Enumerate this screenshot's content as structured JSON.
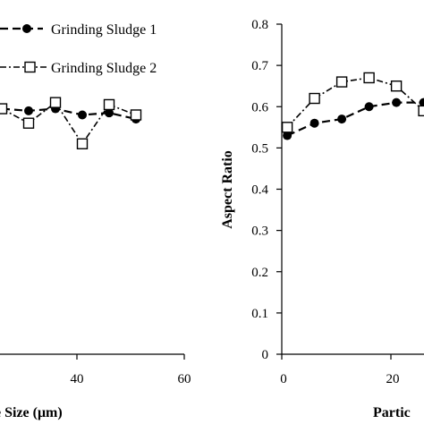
{
  "chart_data": [
    {
      "type": "line",
      "xlabel": "Particle Size (μm)",
      "xlabel_visible": "e Size (μm)",
      "ylabel": "",
      "xticks": [
        40,
        60
      ],
      "xlim": [
        0,
        60
      ],
      "ylim": [
        0,
        0.8
      ],
      "grid": false,
      "legend": {
        "placement": "top",
        "entries": [
          "Grinding Sludge 1",
          "Grinding Sludge 2"
        ]
      },
      "series": [
        {
          "name": "Grinding Sludge 1",
          "marker": "filled-circle",
          "line": "dashed",
          "x": [
            26,
            31,
            36,
            41,
            46,
            51
          ],
          "y": [
            0.595,
            0.59,
            0.595,
            0.58,
            0.585,
            0.57
          ]
        },
        {
          "name": "Grinding Sludge 2",
          "marker": "open-square",
          "line": "dash-dot",
          "x": [
            26,
            31,
            36,
            41,
            46,
            51
          ],
          "y": [
            0.595,
            0.56,
            0.61,
            0.51,
            0.605,
            0.58
          ]
        }
      ]
    },
    {
      "type": "line",
      "xlabel": "Particle Size (μm)",
      "xlabel_visible": "Partic",
      "ylabel": "Aspect Ratio",
      "yticks": [
        "0",
        "0.1",
        "0.2",
        "0.3",
        "0.4",
        "0.5",
        "0.6",
        "0.7",
        "0.8"
      ],
      "xticks": [
        "0",
        "20"
      ],
      "xlim": [
        0,
        40
      ],
      "ylim": [
        0,
        0.8
      ],
      "grid": false,
      "series": [
        {
          "name": "Grinding Sludge 1",
          "marker": "filled-circle",
          "line": "dashed",
          "x": [
            1,
            6,
            11,
            16,
            21,
            26
          ],
          "y": [
            0.53,
            0.56,
            0.57,
            0.6,
            0.61,
            0.61
          ]
        },
        {
          "name": "Grinding Sludge 2",
          "marker": "open-square",
          "line": "dash-dot",
          "x": [
            1,
            6,
            11,
            16,
            21,
            26
          ],
          "y": [
            0.55,
            0.62,
            0.66,
            0.67,
            0.65,
            0.59
          ]
        }
      ]
    }
  ]
}
